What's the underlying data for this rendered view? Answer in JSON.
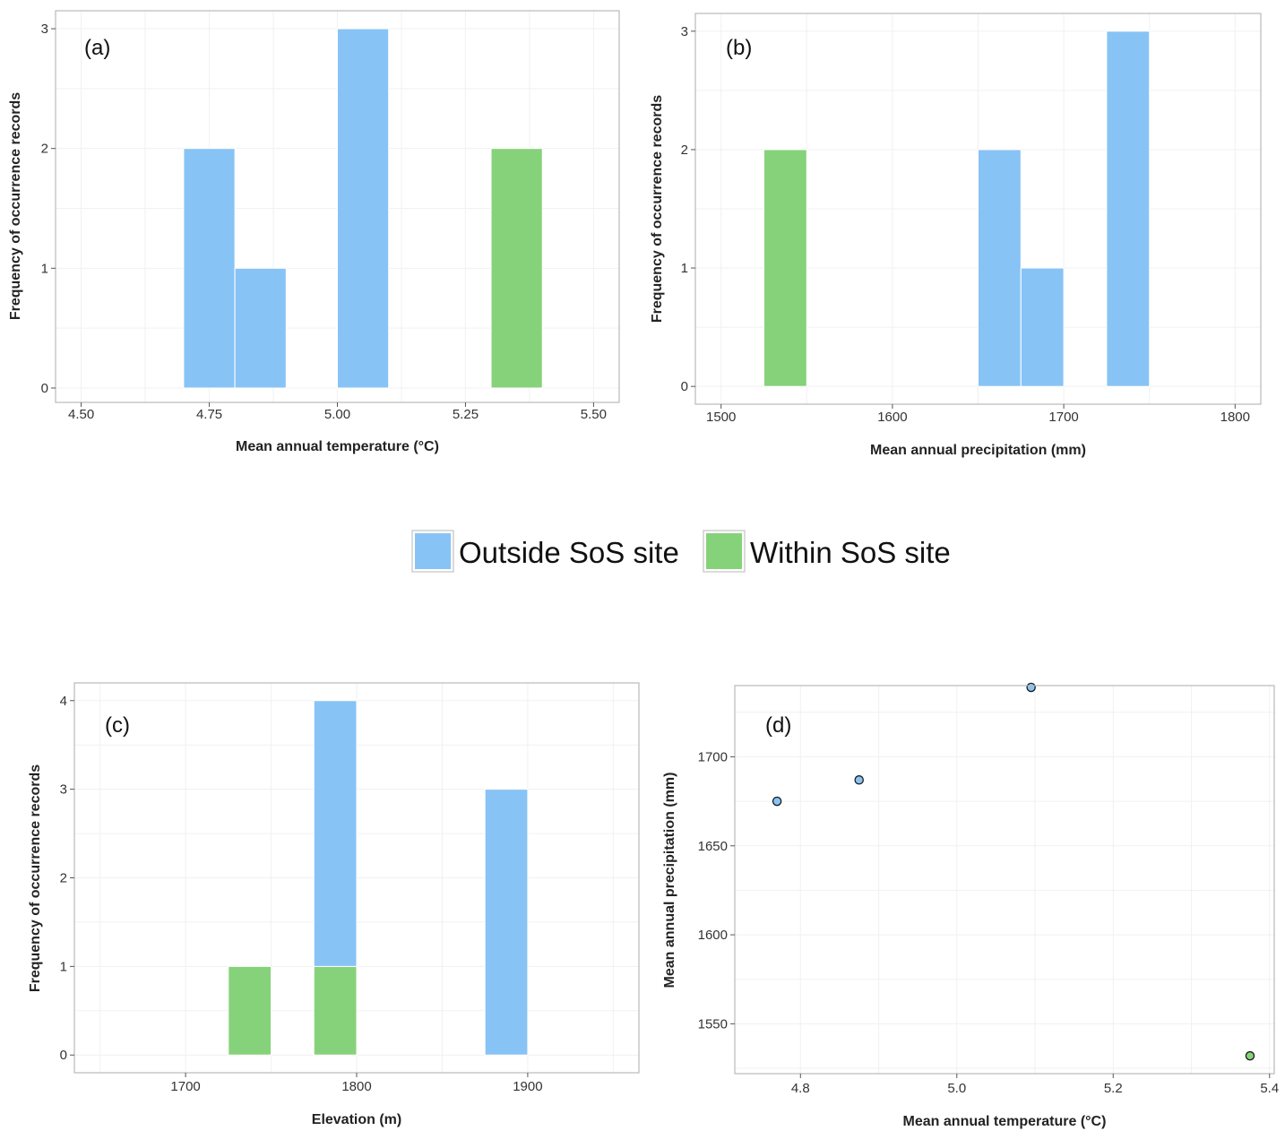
{
  "colors": {
    "outside": "#88c3f5",
    "within": "#86d27a",
    "panel_border": "#b9b9b9",
    "grid": "#f1f1f1"
  },
  "legend": {
    "items": [
      {
        "label": "Outside SoS site",
        "color": "#88c3f5"
      },
      {
        "label": "Within SoS site",
        "color": "#86d27a"
      }
    ]
  },
  "chart_data": [
    {
      "panel": "(a)",
      "type": "bar",
      "stacked": true,
      "xlabel": "Mean annual temperature (°C)",
      "ylabel": "Frequency of occurrence records",
      "xlim": [
        4.45,
        5.55
      ],
      "ylim": [
        -0.12,
        3.15
      ],
      "xticks": [
        "4.50",
        "4.75",
        "5.00",
        "5.25",
        "5.50"
      ],
      "yticks": [
        "0",
        "1",
        "2",
        "3"
      ],
      "bars": [
        {
          "x0": 4.7,
          "x1": 4.8,
          "segments": [
            {
              "series": "Outside SoS site",
              "from": 0,
              "to": 2
            }
          ]
        },
        {
          "x0": 4.8,
          "x1": 4.9,
          "segments": [
            {
              "series": "Outside SoS site",
              "from": 0,
              "to": 1
            }
          ]
        },
        {
          "x0": 5.0,
          "x1": 5.1,
          "segments": [
            {
              "series": "Outside SoS site",
              "from": 0,
              "to": 3
            }
          ]
        },
        {
          "x0": 5.3,
          "x1": 5.4,
          "segments": [
            {
              "series": "Within SoS site",
              "from": 0,
              "to": 2
            }
          ]
        }
      ],
      "grid": true
    },
    {
      "panel": "(b)",
      "type": "bar",
      "stacked": true,
      "xlabel": "Mean annual precipitation (mm)",
      "ylabel": "Frequency of occurrence records",
      "xlim": [
        1485,
        1815
      ],
      "ylim": [
        -0.15,
        3.15
      ],
      "xticks": [
        "1500",
        "1600",
        "1700",
        "1800"
      ],
      "yticks": [
        "0",
        "1",
        "2",
        "3"
      ],
      "bars": [
        {
          "x0": 1525,
          "x1": 1550,
          "segments": [
            {
              "series": "Within SoS site",
              "from": 0,
              "to": 2
            }
          ]
        },
        {
          "x0": 1650,
          "x1": 1675,
          "segments": [
            {
              "series": "Outside SoS site",
              "from": 0,
              "to": 2
            }
          ]
        },
        {
          "x0": 1675,
          "x1": 1700,
          "segments": [
            {
              "series": "Outside SoS site",
              "from": 0,
              "to": 1
            }
          ]
        },
        {
          "x0": 1725,
          "x1": 1750,
          "segments": [
            {
              "series": "Outside SoS site",
              "from": 0,
              "to": 3
            }
          ]
        }
      ],
      "grid": true
    },
    {
      "panel": "(c)",
      "type": "bar",
      "stacked": true,
      "xlabel": "Elevation (m)",
      "ylabel": "Frequency of occurrence records",
      "xlim": [
        1635,
        1965
      ],
      "ylim": [
        -0.2,
        4.2
      ],
      "xticks": [
        "1700",
        "1800",
        "1900"
      ],
      "yticks": [
        "0",
        "1",
        "2",
        "3",
        "4"
      ],
      "bars": [
        {
          "x0": 1725,
          "x1": 1750,
          "segments": [
            {
              "series": "Within SoS site",
              "from": 0,
              "to": 1
            }
          ]
        },
        {
          "x0": 1775,
          "x1": 1800,
          "segments": [
            {
              "series": "Within SoS site",
              "from": 0,
              "to": 1
            },
            {
              "series": "Outside SoS site",
              "from": 1,
              "to": 4
            }
          ]
        },
        {
          "x0": 1875,
          "x1": 1900,
          "segments": [
            {
              "series": "Outside SoS site",
              "from": 0,
              "to": 3
            }
          ]
        }
      ],
      "grid": true
    },
    {
      "panel": "(d)",
      "type": "scatter",
      "xlabel": "Mean annual temperature (°C)",
      "ylabel": "Mean annual precipitation (mm)",
      "xlim": [
        4.716,
        5.406
      ],
      "ylim": [
        1522,
        1740
      ],
      "xticks": [
        "4.8",
        "5.0",
        "5.2",
        "5.4"
      ],
      "yticks": [
        "1550",
        "1600",
        "1650",
        "1700"
      ],
      "points": [
        {
          "x": 4.77,
          "y": 1675,
          "series": "Outside SoS site"
        },
        {
          "x": 4.875,
          "y": 1687,
          "series": "Outside SoS site"
        },
        {
          "x": 5.095,
          "y": 1739,
          "series": "Outside SoS site"
        },
        {
          "x": 5.375,
          "y": 1532,
          "series": "Within SoS site"
        }
      ],
      "grid": true
    }
  ]
}
